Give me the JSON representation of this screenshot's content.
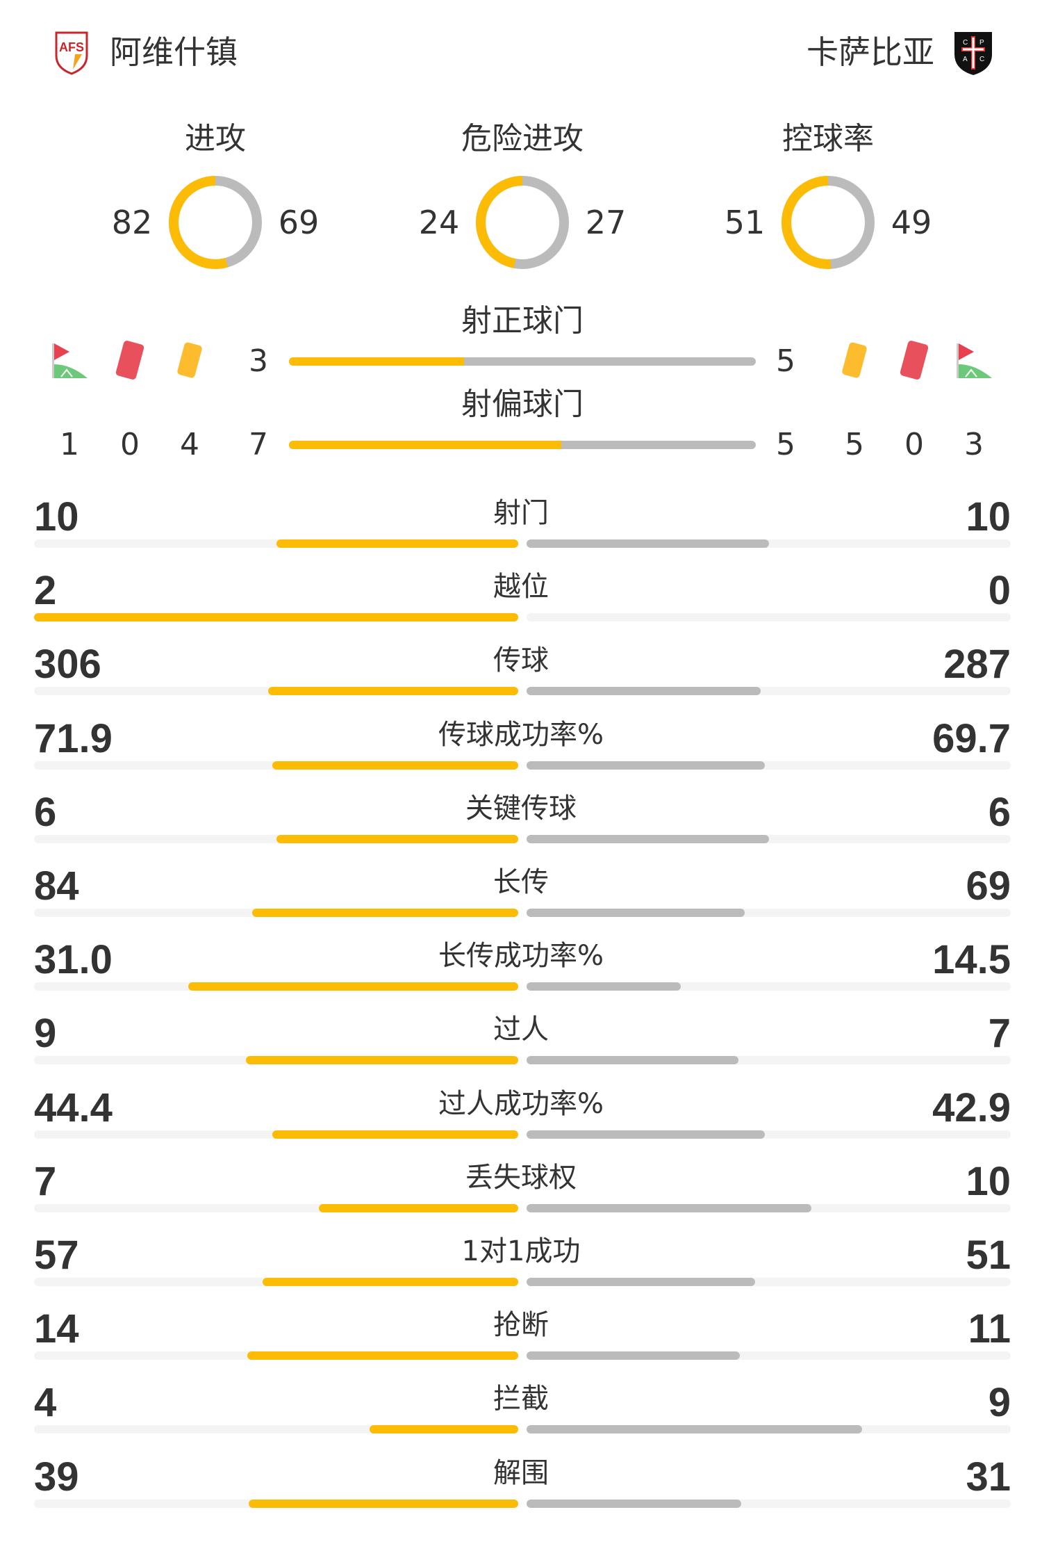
{
  "home": {
    "name": "阿维什镇",
    "logo_text": "AFS"
  },
  "away": {
    "name": "卡萨比亚",
    "logo_text": "CPAC"
  },
  "colors": {
    "home": "#FCBC05",
    "away": "#BBBBBB",
    "track": "#F4F4F4"
  },
  "donuts": [
    {
      "title": "进攻",
      "home": 82,
      "away": 69
    },
    {
      "title": "危险进攻",
      "home": 24,
      "away": 27
    },
    {
      "title": "控球率",
      "home": 51,
      "away": 49
    }
  ],
  "shots_on": {
    "title": "射正球门",
    "home": 3,
    "away": 5
  },
  "shots_off": {
    "title": "射偏球门",
    "home": 7,
    "away": 5
  },
  "events": {
    "icons": [
      "corner-flag-icon",
      "red-card-icon",
      "yellow-card-icon"
    ],
    "home": {
      "corners": 1,
      "red": 0,
      "yellow": 4
    },
    "away": {
      "corners": 3,
      "red": 0,
      "yellow": 5
    }
  },
  "stats": [
    {
      "label": "射门",
      "home": "10",
      "away": "10"
    },
    {
      "label": "越位",
      "home": "2",
      "away": "0"
    },
    {
      "label": "传球",
      "home": "306",
      "away": "287"
    },
    {
      "label": "传球成功率%",
      "home": "71.9",
      "away": "69.7"
    },
    {
      "label": "关键传球",
      "home": "6",
      "away": "6"
    },
    {
      "label": "长传",
      "home": "84",
      "away": "69"
    },
    {
      "label": "长传成功率%",
      "home": "31.0",
      "away": "14.5"
    },
    {
      "label": "过人",
      "home": "9",
      "away": "7"
    },
    {
      "label": "过人成功率%",
      "home": "44.4",
      "away": "42.9"
    },
    {
      "label": "丢失球权",
      "home": "7",
      "away": "10"
    },
    {
      "label": "1对1成功",
      "home": "57",
      "away": "51"
    },
    {
      "label": "抢断",
      "home": "14",
      "away": "11"
    },
    {
      "label": "拦截",
      "home": "4",
      "away": "9"
    },
    {
      "label": "解围",
      "home": "39",
      "away": "31"
    }
  ]
}
